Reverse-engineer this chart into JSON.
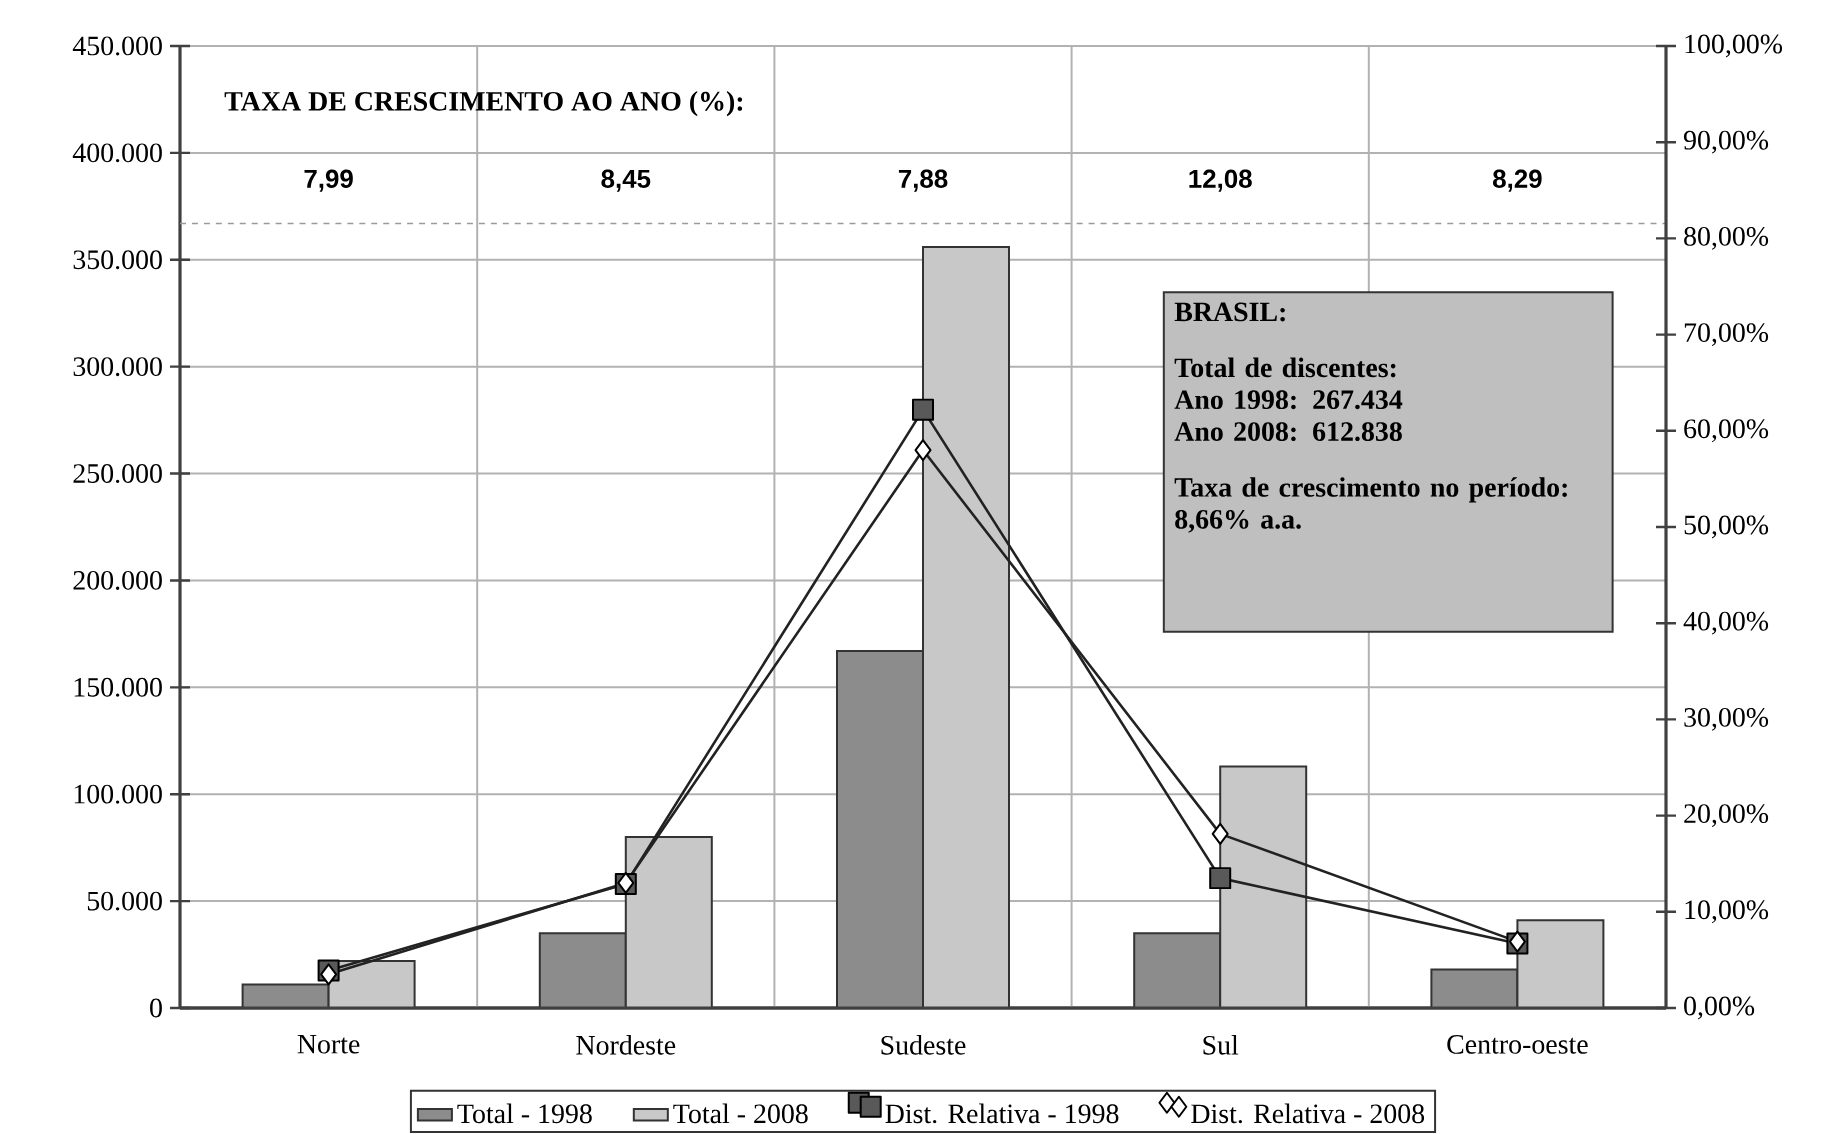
{
  "chart_data": {
    "type": "bar",
    "categories": [
      "Norte",
      "Nordeste",
      "Sudeste",
      "Sul",
      "Centro-oeste"
    ],
    "series": [
      {
        "name": "Total - 1998",
        "color": "#8c8c8c",
        "values": [
          11000,
          35000,
          167000,
          35000,
          18000
        ]
      },
      {
        "name": "Total - 2008",
        "color": "#c8c8c8",
        "values": [
          22000,
          80000,
          356000,
          113000,
          41000
        ]
      },
      {
        "name": "Dist. Relativa - 1998",
        "type": "line",
        "axis": "y2",
        "color": "#222222",
        "marker": "square",
        "values": [
          3.9,
          12.9,
          62.2,
          13.5,
          6.7
        ]
      },
      {
        "name": "Dist. Relativa - 2008",
        "type": "line",
        "axis": "y2",
        "color": "#222222",
        "marker": "diamond",
        "values": [
          3.5,
          13.0,
          58.0,
          18.1,
          6.9
        ]
      }
    ],
    "ylim": [
      0,
      450000
    ],
    "yticks": [
      {
        "value": 0,
        "label": "0"
      },
      {
        "value": 50000,
        "label": "50.000"
      },
      {
        "value": 100000,
        "label": "100.000"
      },
      {
        "value": 150000,
        "label": "150.000"
      },
      {
        "value": 200000,
        "label": "200.000"
      },
      {
        "value": 250000,
        "label": "250.000"
      },
      {
        "value": 300000,
        "label": "300.000"
      },
      {
        "value": 350000,
        "label": "350.000"
      },
      {
        "value": 400000,
        "label": "400.000"
      },
      {
        "value": 450000,
        "label": "450.000"
      }
    ],
    "y2lim": [
      0,
      100
    ],
    "y2ticks": [
      {
        "value": 0,
        "label": "0,00%"
      },
      {
        "value": 10,
        "label": "10,00%"
      },
      {
        "value": 20,
        "label": "20,00%"
      },
      {
        "value": 30,
        "label": "30,00%"
      },
      {
        "value": 40,
        "label": "40,00%"
      },
      {
        "value": 50,
        "label": "50,00%"
      },
      {
        "value": 60,
        "label": "60,00%"
      },
      {
        "value": 70,
        "label": "70,00%"
      },
      {
        "value": 80,
        "label": "80,00%"
      },
      {
        "value": 90,
        "label": "90,00%"
      },
      {
        "value": 100,
        "label": "100,00%"
      }
    ],
    "grid": true,
    "legend": "bottom",
    "ref_lines": [
      {
        "axis": "y",
        "value": 367000,
        "line_style": "dashed",
        "color": "#9a9a9a"
      }
    ],
    "annotations": [
      "TAXA DE CRESCIMENTO AO ANO (%):",
      "7,99",
      "8,45",
      "7,88",
      "12,08",
      "8,29",
      "BRASIL:",
      "Total de discentes:",
      "Ano 1998: 267.434",
      "Ano 2008: 612.838",
      "Taxa de crescimento no período: 8,66% a.a."
    ]
  }
}
